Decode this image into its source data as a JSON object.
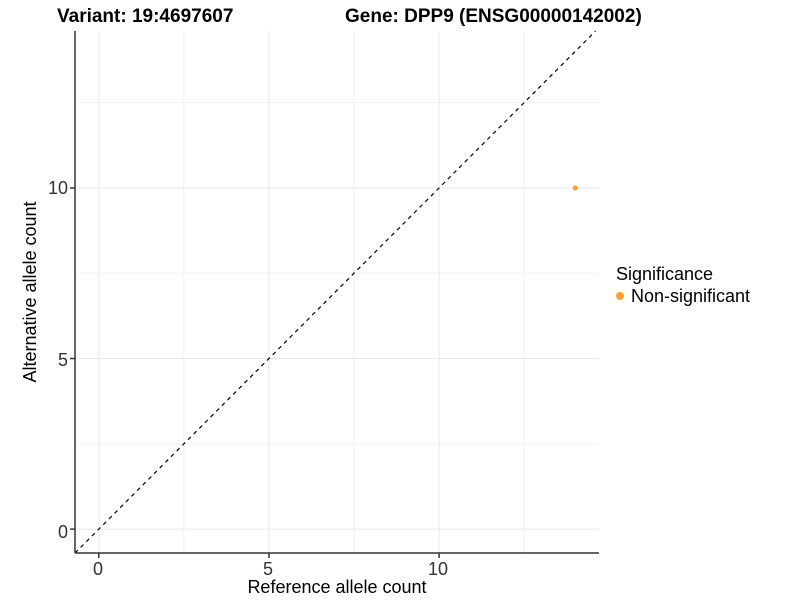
{
  "titles": {
    "variant": "Variant: 19:4697607",
    "gene": "Gene: DPP9 (ENSG00000142002)"
  },
  "chart_data": {
    "type": "scatter",
    "xlabel": "Reference allele count",
    "ylabel": "Alternative allele count",
    "xlim": [
      -0.7,
      14.7
    ],
    "ylim": [
      -0.7,
      14.6
    ],
    "x_ticks": [
      0,
      5,
      10
    ],
    "y_ticks": [
      0,
      5,
      10
    ],
    "x_minor_ticks": [
      2.5,
      7.5,
      12.5
    ],
    "y_minor_ticks": [
      2.5,
      7.5,
      12.5
    ],
    "grid": true,
    "points": [
      {
        "x": 14,
        "y": 10,
        "significance": "Non-significant"
      }
    ],
    "reference_line": {
      "type": "identity",
      "style": "dashed",
      "color": "#000000"
    },
    "legend": {
      "title": "Significance",
      "position": "right",
      "entries": [
        {
          "label": "Non-significant",
          "color": "#FCA035"
        }
      ]
    }
  },
  "colors": {
    "point": "#FCA035",
    "grid_major": "#E8E8E8",
    "grid_minor": "#F1F1F1",
    "axis": "#333333",
    "background": "#FFFFFF"
  }
}
